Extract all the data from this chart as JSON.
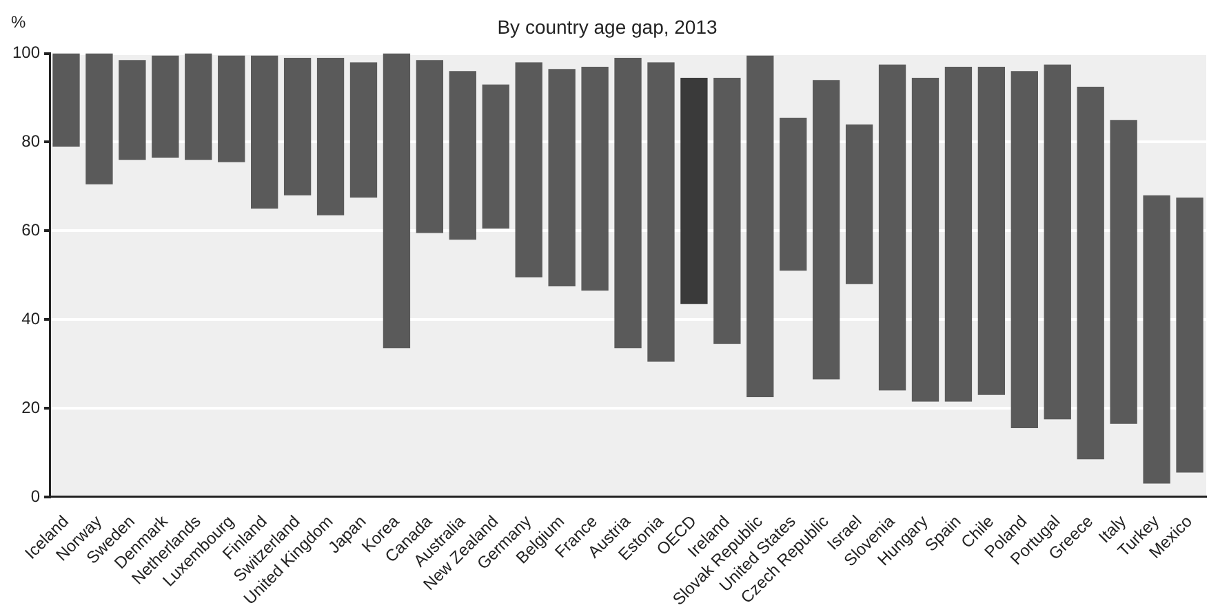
{
  "chart_data": {
    "type": "bar",
    "title": "By country age gap, 2013",
    "ylabel": "%",
    "categories": [
      "Iceland",
      "Norway",
      "Sweden",
      "Denmark",
      "Netherlands",
      "Luxembourg",
      "Finland",
      "Switzerland",
      "United Kingdom",
      "Japan",
      "Korea",
      "Canada",
      "Australia",
      "New Zealand",
      "Germany",
      "Belgium",
      "France",
      "Austria",
      "Estonia",
      "OECD",
      "Ireland",
      "Slovak Republic",
      "United States",
      "Czech Republic",
      "Israel",
      "Slovenia",
      "Hungary",
      "Spain",
      "Chile",
      "Poland",
      "Portugal",
      "Greece",
      "Italy",
      "Turkey",
      "Mexico"
    ],
    "base": [
      79,
      70.5,
      76,
      76.5,
      76,
      75.5,
      65,
      68,
      63.5,
      67.5,
      33.5,
      59.5,
      58,
      60.5,
      49.5,
      47.5,
      46.5,
      33.5,
      30.5,
      43.5,
      34.5,
      22.5,
      51,
      26.5,
      48,
      24,
      21.5,
      21.5,
      23,
      15.5,
      17.5,
      8.5,
      16.5,
      3,
      5.5
    ],
    "values": [
      21,
      29.5,
      22.5,
      23,
      24,
      24,
      34.5,
      31,
      35.5,
      30.5,
      66.5,
      39,
      38,
      32.5,
      48.5,
      49,
      50.5,
      65.5,
      67.5,
      51,
      60,
      77,
      34.5,
      67.5,
      36,
      73.5,
      73,
      75.5,
      74,
      80.5,
      80,
      84,
      68.5,
      65,
      62
    ],
    "colors": [
      "#5a5a5a",
      "#5a5a5a",
      "#5a5a5a",
      "#5a5a5a",
      "#5a5a5a",
      "#5a5a5a",
      "#5a5a5a",
      "#5a5a5a",
      "#5a5a5a",
      "#5a5a5a",
      "#5a5a5a",
      "#5a5a5a",
      "#5a5a5a",
      "#5a5a5a",
      "#5a5a5a",
      "#5a5a5a",
      "#5a5a5a",
      "#5a5a5a",
      "#5a5a5a",
      "#3a3a3a",
      "#5a5a5a",
      "#5a5a5a",
      "#5a5a5a",
      "#5a5a5a",
      "#5a5a5a",
      "#5a5a5a",
      "#5a5a5a",
      "#5a5a5a",
      "#5a5a5a",
      "#5a5a5a",
      "#5a5a5a",
      "#5a5a5a",
      "#5a5a5a",
      "#5a5a5a",
      "#5a5a5a"
    ],
    "ylim": [
      0,
      100
    ],
    "yticks": [
      0,
      20,
      40,
      60,
      80,
      100
    ],
    "grid": "y",
    "legend": false
  }
}
